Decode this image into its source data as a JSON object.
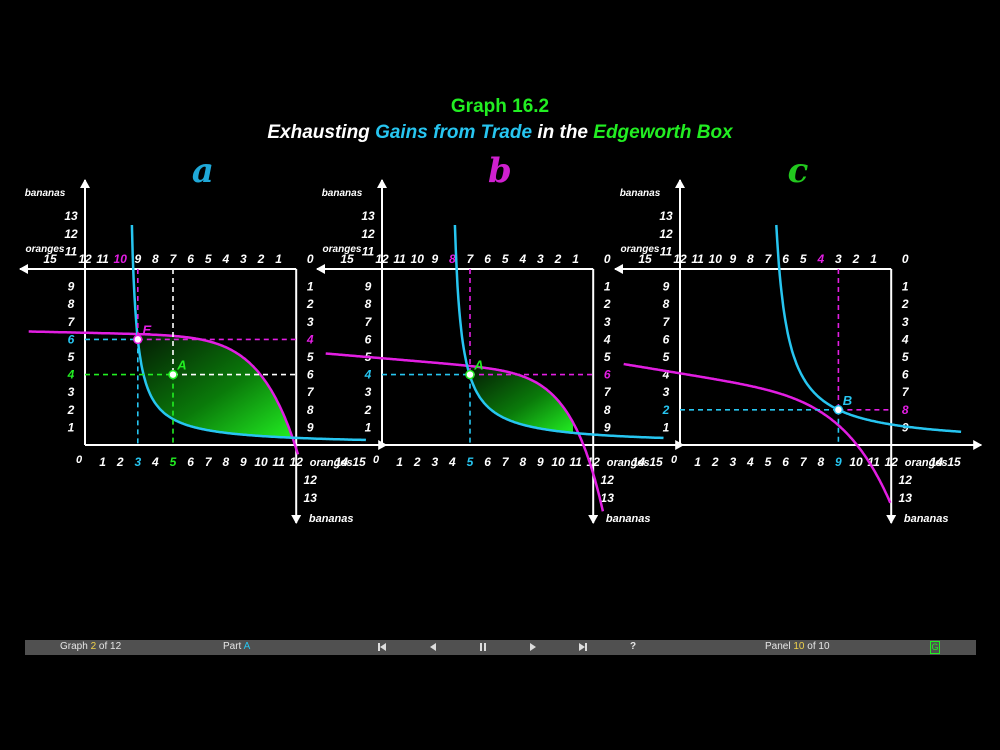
{
  "title": {
    "line1": "Graph 16.2",
    "line2_parts": [
      {
        "text": "Exhausting ",
        "color": "#ffffff"
      },
      {
        "text": "Gains from Trade",
        "color": "#27c5f0"
      },
      {
        "text": " in the ",
        "color": "#ffffff"
      },
      {
        "text": "Edgeworth Box",
        "color": "#22ee22"
      }
    ]
  },
  "axis_labels": {
    "bananas": "bananas",
    "oranges": "oranges"
  },
  "colors": {
    "cyan": "#27c5f0",
    "magenta": "#e21ee2",
    "green": "#22ee22",
    "white": "#ffffff",
    "panel_a_letter": "#1fa8d8",
    "panel_b_letter": "#d020d0",
    "panel_c_letter": "#22c81e"
  },
  "panels": [
    {
      "letter": "a",
      "letter_color": "#1fa8d8",
      "bottom_ticks": [
        "1",
        "2",
        "3",
        "4",
        "5",
        "6",
        "7",
        "8",
        "9",
        "10",
        "11",
        "12",
        "14",
        "15"
      ],
      "top_ticks": [
        "12",
        "11",
        "10",
        "9",
        "8",
        "7",
        "6",
        "5",
        "4",
        "3",
        "2",
        "1",
        "0",
        "15"
      ],
      "left_ticks": [
        "1",
        "2",
        "3",
        "4",
        "5",
        "6",
        "7",
        "8",
        "9",
        "11",
        "12",
        "13"
      ],
      "right_ticks": [
        "1",
        "2",
        "3",
        "4",
        "5",
        "6",
        "7",
        "8",
        "9",
        "12",
        "13"
      ],
      "origin_label": "0",
      "points": [
        {
          "label": "E",
          "color": "#e21ee2",
          "x": 3,
          "y": 6,
          "x_top": 10,
          "y_right": 4
        },
        {
          "label": "A",
          "color": "#22ee22",
          "x": 5,
          "y": 4,
          "x_top": 8,
          "y_right": 6
        }
      ],
      "axis_highlights": {
        "bottom": [
          {
            "text": "3",
            "color": "#27c5f0"
          },
          {
            "text": "5",
            "color": "#22ee22"
          }
        ],
        "left": [
          {
            "text": "6",
            "color": "#27c5f0"
          },
          {
            "text": "4",
            "color": "#22ee22"
          }
        ],
        "top": [
          {
            "text": "10",
            "color": "#e21ee2"
          },
          {
            "text": "8",
            "color": "#ffffff"
          }
        ],
        "right": [
          {
            "text": "4",
            "color": "#e21ee2"
          },
          {
            "text": "6",
            "color": "#ffffff"
          }
        ]
      }
    },
    {
      "letter": "b",
      "letter_color": "#d020d0",
      "bottom_ticks": [
        "1",
        "2",
        "3",
        "4",
        "5",
        "6",
        "7",
        "8",
        "9",
        "10",
        "11",
        "12",
        "14",
        "15"
      ],
      "top_ticks": [
        "12",
        "11",
        "10",
        "9",
        "8",
        "7",
        "6",
        "5",
        "4",
        "3",
        "2",
        "1",
        "0",
        "15"
      ],
      "left_ticks": [
        "1",
        "2",
        "3",
        "4",
        "5",
        "6",
        "7",
        "8",
        "9",
        "11",
        "12",
        "13"
      ],
      "right_ticks": [
        "1",
        "2",
        "3",
        "4",
        "5",
        "6",
        "7",
        "8",
        "9",
        "12",
        "13"
      ],
      "origin_label": "0",
      "points": [
        {
          "label": "A",
          "color": "#22ee22",
          "x": 5,
          "y": 4,
          "x_top": 8,
          "y_right": 6
        }
      ],
      "axis_highlights": {
        "bottom": [
          {
            "text": "5",
            "color": "#27c5f0"
          }
        ],
        "left": [
          {
            "text": "4",
            "color": "#27c5f0"
          }
        ],
        "top": [
          {
            "text": "8",
            "color": "#e21ee2"
          }
        ],
        "right": [
          {
            "text": "6",
            "color": "#e21ee2"
          }
        ]
      }
    },
    {
      "letter": "c",
      "letter_color": "#22c81e",
      "bottom_ticks": [
        "1",
        "2",
        "3",
        "4",
        "5",
        "6",
        "7",
        "8",
        "9",
        "10",
        "11",
        "12",
        "14",
        "15"
      ],
      "top_ticks": [
        "12",
        "11",
        "10",
        "9",
        "8",
        "7",
        "6",
        "5",
        "4",
        "3",
        "2",
        "1",
        "0",
        "15"
      ],
      "left_ticks": [
        "1",
        "2",
        "3",
        "4",
        "5",
        "6",
        "7",
        "8",
        "9",
        "11",
        "12",
        "13"
      ],
      "right_ticks": [
        "1",
        "2",
        "3",
        "4",
        "5",
        "6",
        "7",
        "8",
        "9",
        "12",
        "13"
      ],
      "origin_label": "0",
      "points": [
        {
          "label": "B",
          "color": "#27c5f0",
          "x": 9,
          "y": 2,
          "x_top": 4,
          "y_right": 8
        }
      ],
      "axis_highlights": {
        "bottom": [
          {
            "text": "9",
            "color": "#27c5f0"
          }
        ],
        "left": [
          {
            "text": "2",
            "color": "#27c5f0"
          }
        ],
        "top": [
          {
            "text": "4",
            "color": "#e21ee2"
          }
        ],
        "right": [
          {
            "text": "8",
            "color": "#e21ee2"
          }
        ]
      }
    }
  ],
  "bottom_bar": {
    "graph_prefix": "Graph ",
    "graph_num": "2",
    "graph_suffix": " of 12",
    "part_prefix": "Part ",
    "part_value": "A",
    "panel_prefix": "Panel ",
    "panel_num": "10",
    "panel_suffix": " of 10",
    "help": "?",
    "g_label": "G"
  }
}
